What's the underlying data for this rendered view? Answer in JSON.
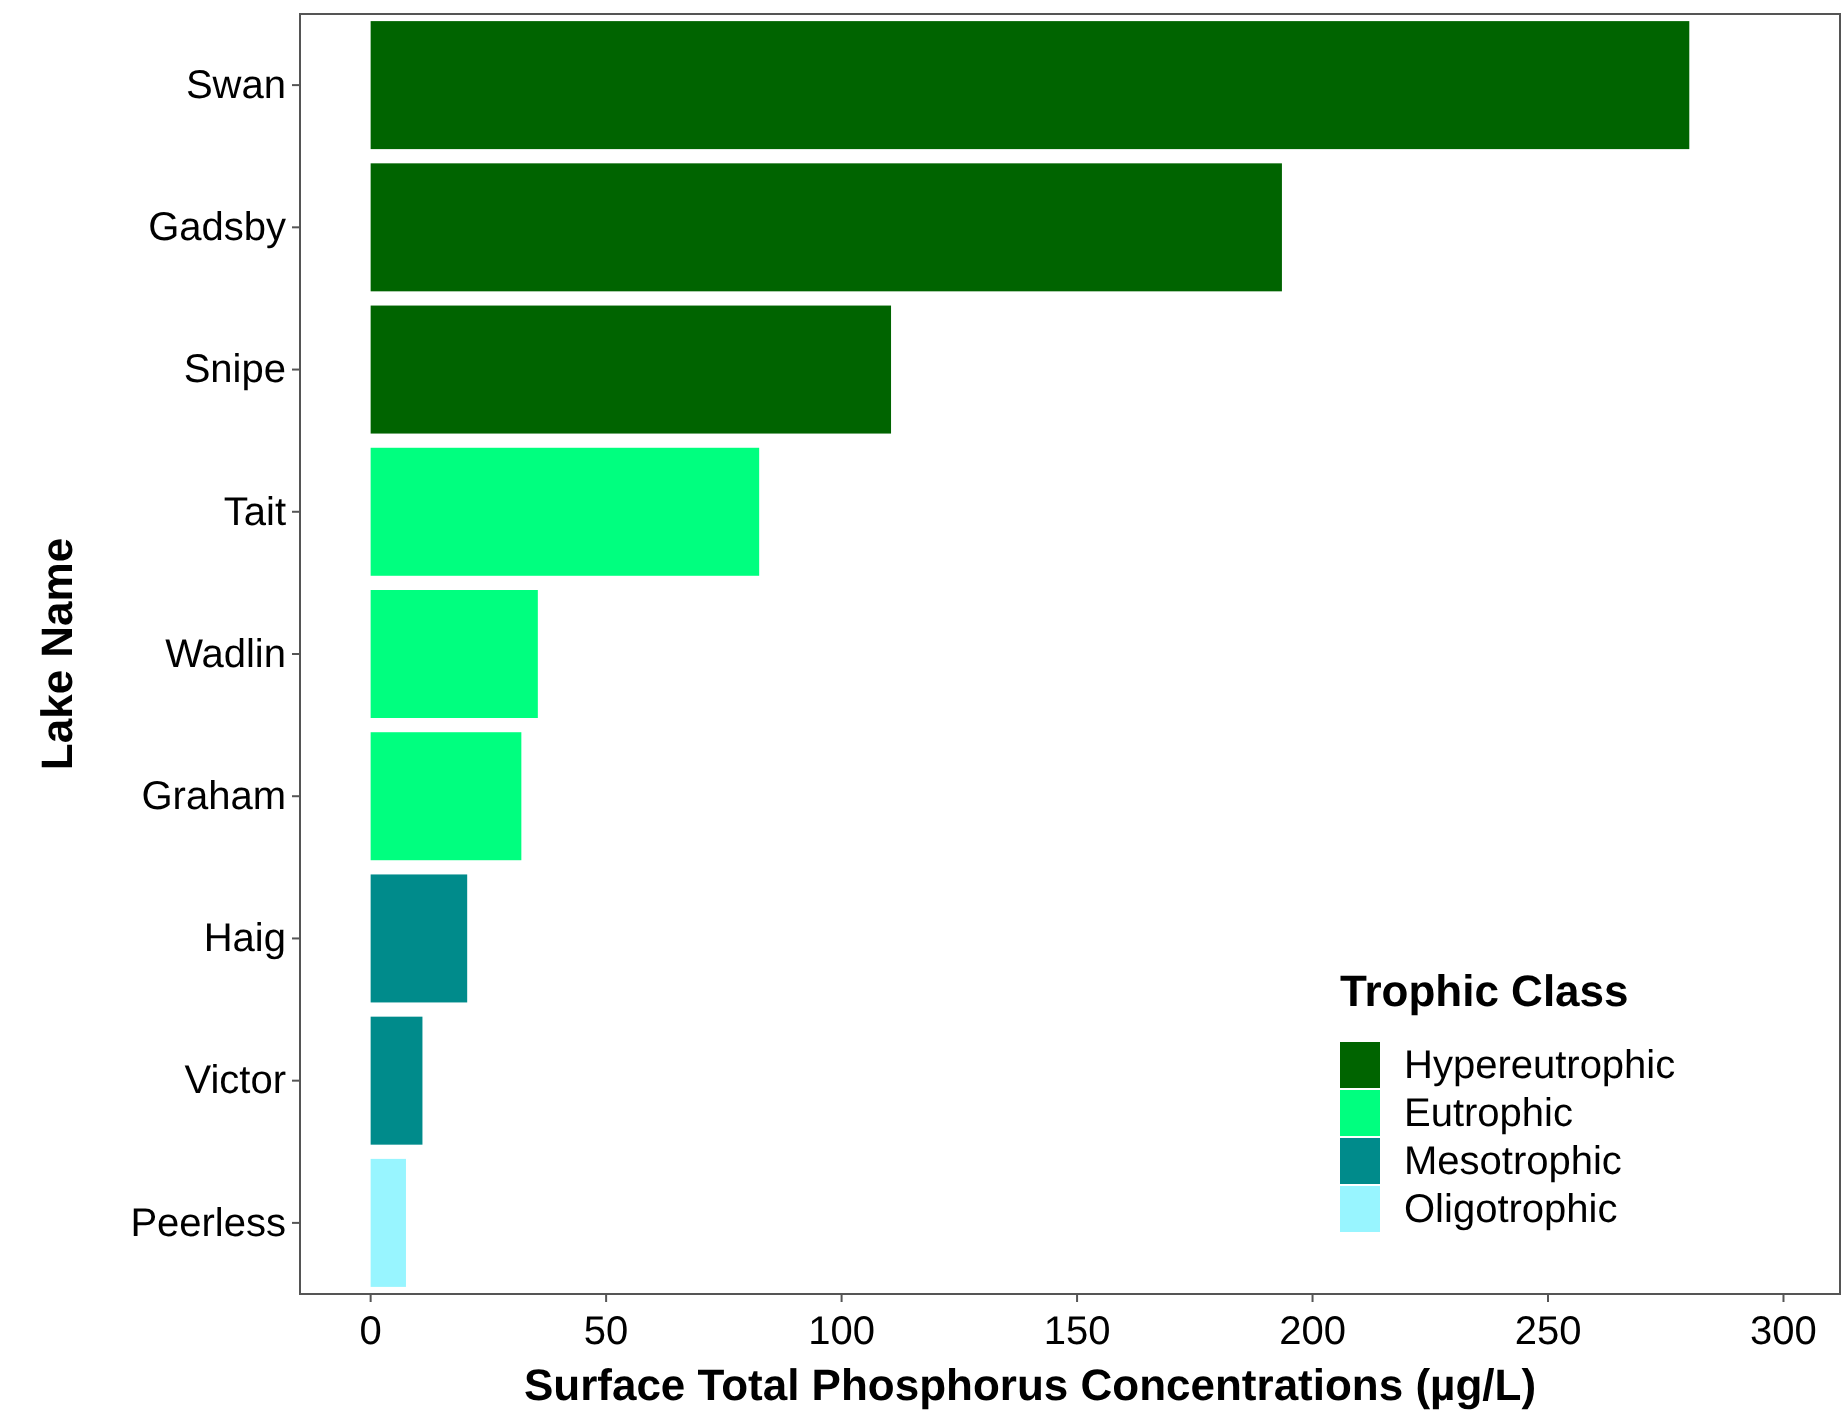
{
  "chart_data": {
    "type": "bar",
    "orientation": "horizontal",
    "xlabel": "Surface Total Phosphorus Concentrations (µg/L)",
    "ylabel": "Lake Name",
    "legend_title": "Trophic Class",
    "legend": "bottom right",
    "grid": false,
    "categories": [
      "Swan",
      "Gadsby",
      "Snipe",
      "Tait",
      "Wadlin",
      "Graham",
      "Haig",
      "Victor",
      "Peerless"
    ],
    "xlim": [
      -15,
      312
    ],
    "xticks": [
      0,
      50,
      100,
      150,
      200,
      250,
      300
    ],
    "series": [
      {
        "name": "Hypereutrophic",
        "color": "#006400",
        "values": [
          280,
          193.5,
          110.5,
          null,
          null,
          null,
          null,
          null,
          null
        ]
      },
      {
        "name": "Eutrophic",
        "color": "#00ff7f",
        "values": [
          null,
          null,
          null,
          82.5,
          35.5,
          32,
          null,
          null,
          null
        ]
      },
      {
        "name": "Mesotrophic",
        "color": "#008b8b",
        "values": [
          null,
          null,
          null,
          null,
          null,
          null,
          20.5,
          11,
          null
        ]
      },
      {
        "name": "Oligotrophic",
        "color": "#98f5ff",
        "values": [
          null,
          null,
          null,
          null,
          null,
          null,
          null,
          null,
          7.5
        ]
      }
    ]
  }
}
